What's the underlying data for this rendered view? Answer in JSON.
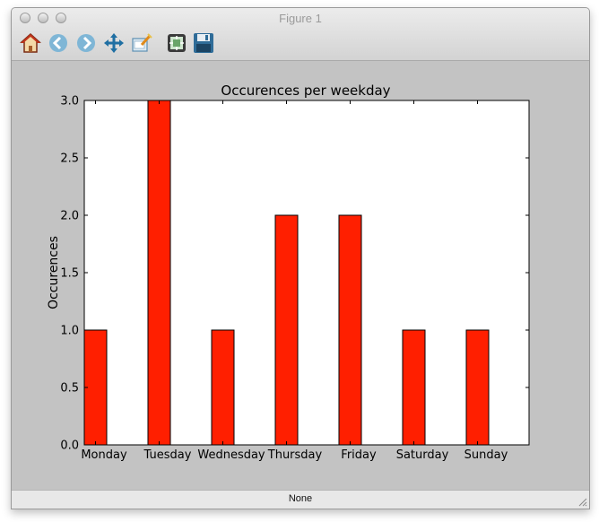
{
  "window": {
    "title": "Figure 1",
    "status": "None"
  },
  "toolbar": {
    "items": [
      {
        "name": "home-icon"
      },
      {
        "name": "back-arrow-icon"
      },
      {
        "name": "forward-arrow-icon"
      },
      {
        "name": "pan-icon"
      },
      {
        "name": "zoom-icon"
      },
      {
        "name": "configure-subplots-icon"
      },
      {
        "name": "save-icon"
      }
    ]
  },
  "colors": {
    "bar_fill": "#ff1f00",
    "figure_bg": "#c3c3c3",
    "axes_bg": "#ffffff"
  },
  "chart_data": {
    "type": "bar",
    "title": "Occurences per weekday",
    "xlabel": "",
    "ylabel": "Occurences",
    "categories": [
      "Monday",
      "Tuesday",
      "Wednesday",
      "Thursday",
      "Friday",
      "Saturday",
      "Sunday"
    ],
    "values": [
      1,
      3,
      1,
      2,
      2,
      1,
      1
    ],
    "ylim": [
      0,
      3.0
    ],
    "yticks": [
      "0.0",
      "0.5",
      "1.0",
      "1.5",
      "2.0",
      "2.5",
      "3.0"
    ],
    "grid": false
  }
}
